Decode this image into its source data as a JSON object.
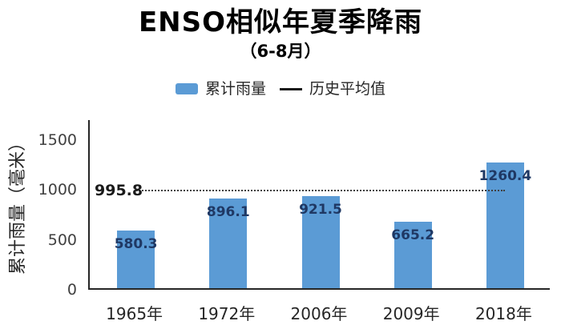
{
  "chart_data": {
    "type": "bar",
    "title": "ENSO相似年夏季降雨",
    "subtitle": "（6-8月）",
    "categories": [
      "1965年",
      "1972年",
      "2006年",
      "2009年",
      "2018年"
    ],
    "series": [
      {
        "name": "累计雨量",
        "type": "bar",
        "values": [
          580.3,
          896.1,
          921.5,
          665.2,
          1260.4
        ]
      }
    ],
    "data_labels": [
      "580.3",
      "896.1",
      "921.5",
      "665.2",
      "1260.4"
    ],
    "reference_line": {
      "name": "历史平均值",
      "value": 995.8,
      "label": "995.8",
      "style": "dotted"
    },
    "ylabel": "累计雨量（毫米）",
    "xlabel": "",
    "ylim": [
      0,
      1700
    ],
    "yticks": [
      0,
      500,
      1000,
      1500
    ],
    "legend_position": "top",
    "grid": false,
    "colors": {
      "bar": "#5b9bd5",
      "data_label": "#1f3864",
      "reference_line": "#404040",
      "axis": "#262626",
      "tick_text": "#404040",
      "title_text": "#000000"
    }
  }
}
